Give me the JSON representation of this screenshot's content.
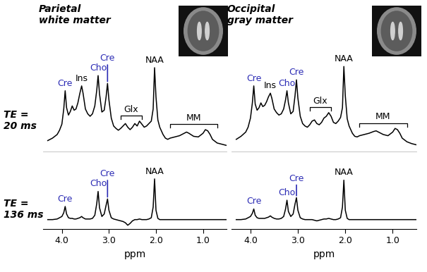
{
  "chart_data": [
    {
      "type": "line",
      "title": "Parietal\nwhite matter",
      "row_label": "TE =\n20 ms",
      "x": [
        4.3,
        4.2,
        4.1,
        4.05,
        4.0,
        3.96,
        3.93,
        3.9,
        3.86,
        3.82,
        3.78,
        3.74,
        3.7,
        3.66,
        3.62,
        3.58,
        3.55,
        3.5,
        3.45,
        3.4,
        3.35,
        3.3,
        3.26,
        3.23,
        3.2,
        3.15,
        3.1,
        3.06,
        3.03,
        3.0,
        2.95,
        2.9,
        2.85,
        2.8,
        2.75,
        2.7,
        2.65,
        2.6,
        2.55,
        2.5,
        2.45,
        2.4,
        2.35,
        2.3,
        2.25,
        2.2,
        2.15,
        2.1,
        2.06,
        2.03,
        2.0,
        1.96,
        1.92,
        1.85,
        1.8,
        1.75,
        1.7,
        1.6,
        1.5,
        1.4,
        1.35,
        1.3,
        1.2,
        1.1,
        1.0,
        0.95,
        0.9,
        0.85,
        0.8,
        0.7,
        0.6,
        0.5
      ],
      "values": [
        18,
        22,
        28,
        35,
        45,
        70,
        100,
        72,
        60,
        66,
        75,
        68,
        70,
        80,
        95,
        108,
        96,
        70,
        62,
        58,
        62,
        75,
        100,
        125,
        95,
        65,
        68,
        90,
        112,
        85,
        55,
        42,
        38,
        35,
        38,
        42,
        46,
        40,
        36,
        40,
        46,
        42,
        50,
        45,
        40,
        42,
        46,
        50,
        70,
        138,
        90,
        52,
        40,
        28,
        22,
        20,
        22,
        24,
        26,
        30,
        32,
        30,
        25,
        24,
        30,
        36,
        34,
        28,
        20,
        14,
        12,
        10
      ],
      "color": "#000000",
      "xlim": [
        4.4,
        0.5
      ],
      "xticks": [],
      "ylim": [
        0,
        145
      ],
      "tick_labels": false,
      "annotations": [
        {
          "text": "Cre",
          "x": 3.93,
          "color": "#2a2ab4"
        },
        {
          "text": "Ins",
          "x": 3.58,
          "color": "#000000"
        },
        {
          "text": "Cho",
          "x": 3.23,
          "color": "#2a2ab4"
        },
        {
          "text": "Cre",
          "x": 3.03,
          "color": "#2a2ab4"
        },
        {
          "text": "NAA",
          "x": 2.03,
          "color": "#000000"
        },
        {
          "text": "Glx",
          "x_range": [
            2.75,
            2.3
          ],
          "color": "#000000"
        },
        {
          "text": "MM",
          "x_range": [
            1.7,
            0.7
          ],
          "color": "#000000"
        }
      ]
    },
    {
      "type": "line",
      "title": "Occipital\ngray matter",
      "x": [
        4.3,
        4.2,
        4.1,
        4.05,
        4.0,
        3.96,
        3.93,
        3.9,
        3.86,
        3.82,
        3.78,
        3.74,
        3.7,
        3.66,
        3.62,
        3.58,
        3.55,
        3.5,
        3.45,
        3.4,
        3.35,
        3.3,
        3.26,
        3.23,
        3.2,
        3.15,
        3.1,
        3.06,
        3.03,
        3.0,
        2.95,
        2.9,
        2.85,
        2.8,
        2.75,
        2.7,
        2.65,
        2.6,
        2.55,
        2.5,
        2.45,
        2.4,
        2.35,
        2.3,
        2.25,
        2.2,
        2.15,
        2.1,
        2.06,
        2.03,
        2.0,
        1.96,
        1.92,
        1.85,
        1.8,
        1.75,
        1.7,
        1.6,
        1.5,
        1.4,
        1.35,
        1.3,
        1.2,
        1.1,
        1.0,
        0.95,
        0.9,
        0.85,
        0.8,
        0.7,
        0.6,
        0.5
      ],
      "values": [
        20,
        25,
        32,
        40,
        55,
        80,
        108,
        78,
        68,
        72,
        80,
        74,
        76,
        82,
        90,
        96,
        88,
        70,
        64,
        60,
        62,
        70,
        85,
        100,
        80,
        62,
        66,
        92,
        118,
        88,
        58,
        46,
        42,
        40,
        44,
        50,
        52,
        46,
        44,
        48,
        55,
        58,
        64,
        58,
        48,
        46,
        50,
        56,
        72,
        140,
        92,
        54,
        42,
        30,
        25,
        24,
        26,
        28,
        30,
        33,
        34,
        32,
        28,
        26,
        32,
        38,
        36,
        30,
        22,
        16,
        13,
        11
      ],
      "color": "#000000",
      "xlim": [
        4.4,
        0.5
      ],
      "xticks": [],
      "ylim": [
        0,
        145
      ],
      "tick_labels": false,
      "annotations": [
        {
          "text": "Cre",
          "x": 3.93,
          "color": "#2a2ab4"
        },
        {
          "text": "Ins",
          "x": 3.58,
          "color": "#000000"
        },
        {
          "text": "Cho",
          "x": 3.23,
          "color": "#2a2ab4"
        },
        {
          "text": "Cre",
          "x": 3.03,
          "color": "#2a2ab4"
        },
        {
          "text": "NAA",
          "x": 2.03,
          "color": "#000000"
        },
        {
          "text": "Glx",
          "x_range": [
            2.75,
            2.3
          ],
          "color": "#000000"
        },
        {
          "text": "MM",
          "x_range": [
            1.7,
            0.7
          ],
          "color": "#000000"
        }
      ]
    },
    {
      "type": "line",
      "row_label": "TE =\n136 ms",
      "xlabel": "ppm",
      "x": [
        4.3,
        4.2,
        4.1,
        4.05,
        4.0,
        3.96,
        3.93,
        3.9,
        3.86,
        3.82,
        3.78,
        3.74,
        3.7,
        3.66,
        3.62,
        3.58,
        3.55,
        3.5,
        3.45,
        3.4,
        3.35,
        3.3,
        3.26,
        3.23,
        3.2,
        3.15,
        3.1,
        3.06,
        3.03,
        3.0,
        2.95,
        2.9,
        2.85,
        2.8,
        2.75,
        2.7,
        2.65,
        2.6,
        2.55,
        2.5,
        2.45,
        2.4,
        2.35,
        2.3,
        2.25,
        2.2,
        2.15,
        2.1,
        2.06,
        2.03,
        2.0,
        1.96,
        1.92,
        1.85,
        1.8,
        1.75,
        1.7,
        1.6,
        1.5,
        1.4,
        1.35,
        1.3,
        1.2,
        1.1,
        1.0,
        0.95,
        0.9,
        0.85,
        0.8,
        0.7,
        0.6,
        0.5
      ],
      "values": [
        15,
        15,
        16,
        18,
        20,
        26,
        36,
        24,
        18,
        17,
        17,
        16,
        16,
        17,
        18,
        20,
        18,
        16,
        16,
        16,
        17,
        22,
        40,
        60,
        34,
        20,
        24,
        38,
        48,
        30,
        18,
        16,
        15,
        14,
        13,
        12,
        10,
        6,
        9,
        13,
        15,
        15,
        16,
        15,
        15,
        15,
        16,
        18,
        35,
        80,
        30,
        17,
        15,
        15,
        15,
        15,
        15,
        15,
        15,
        15,
        15,
        15,
        15,
        15,
        15,
        15,
        15,
        15,
        15,
        15,
        15,
        15
      ],
      "color": "#000000",
      "xlim": [
        4.4,
        0.5
      ],
      "xticks": [
        {
          "value": 4,
          "label": "4.0"
        },
        {
          "value": 3,
          "label": "3.0"
        },
        {
          "value": 2,
          "label": "2.0"
        },
        {
          "value": 1,
          "label": "1.0"
        }
      ],
      "ylim": [
        0,
        90
      ],
      "tick_labels": "x",
      "annotations": [
        {
          "text": "Cre",
          "x": 3.93,
          "color": "#2a2ab4"
        },
        {
          "text": "Cho",
          "x": 3.23,
          "color": "#2a2ab4"
        },
        {
          "text": "Cre",
          "x": 3.03,
          "color": "#2a2ab4"
        },
        {
          "text": "NAA",
          "x": 2.03,
          "color": "#000000"
        }
      ]
    },
    {
      "type": "line",
      "xlabel": "ppm",
      "x": [
        4.3,
        4.2,
        4.1,
        4.05,
        4.0,
        3.96,
        3.93,
        3.9,
        3.86,
        3.82,
        3.78,
        3.74,
        3.7,
        3.66,
        3.62,
        3.58,
        3.55,
        3.5,
        3.45,
        3.4,
        3.35,
        3.3,
        3.26,
        3.23,
        3.2,
        3.15,
        3.1,
        3.06,
        3.03,
        3.0,
        2.95,
        2.9,
        2.85,
        2.8,
        2.75,
        2.7,
        2.65,
        2.6,
        2.55,
        2.5,
        2.45,
        2.4,
        2.35,
        2.3,
        2.25,
        2.2,
        2.15,
        2.1,
        2.06,
        2.03,
        2.0,
        1.96,
        1.92,
        1.85,
        1.8,
        1.75,
        1.7,
        1.6,
        1.5,
        1.4,
        1.35,
        1.3,
        1.2,
        1.1,
        1.0,
        0.95,
        0.9,
        0.85,
        0.8,
        0.7,
        0.6,
        0.5
      ],
      "values": [
        15,
        15,
        16,
        18,
        20,
        25,
        32,
        22,
        18,
        17,
        17,
        17,
        17,
        18,
        19,
        21,
        19,
        17,
        16,
        16,
        17,
        20,
        32,
        46,
        28,
        20,
        24,
        40,
        50,
        30,
        18,
        16,
        15,
        15,
        15,
        15,
        14,
        13,
        14,
        15,
        16,
        16,
        17,
        16,
        15,
        15,
        16,
        18,
        35,
        78,
        30,
        17,
        15,
        15,
        15,
        15,
        15,
        15,
        15,
        15,
        15,
        15,
        15,
        15,
        15,
        15,
        15,
        15,
        15,
        15,
        15,
        15
      ],
      "color": "#000000",
      "xlim": [
        4.4,
        0.5
      ],
      "xticks": [
        {
          "value": 4,
          "label": "4.0"
        },
        {
          "value": 3,
          "label": "3.0"
        },
        {
          "value": 2,
          "label": "2.0"
        },
        {
          "value": 1,
          "label": "1.0"
        }
      ],
      "ylim": [
        0,
        90
      ],
      "tick_labels": "x",
      "annotations": [
        {
          "text": "Cre",
          "x": 3.93,
          "color": "#2a2ab4"
        },
        {
          "text": "Cho",
          "x": 3.23,
          "color": "#2a2ab4"
        },
        {
          "text": "Cre",
          "x": 3.03,
          "color": "#2a2ab4"
        },
        {
          "text": "NAA",
          "x": 2.03,
          "color": "#000000"
        }
      ]
    }
  ]
}
